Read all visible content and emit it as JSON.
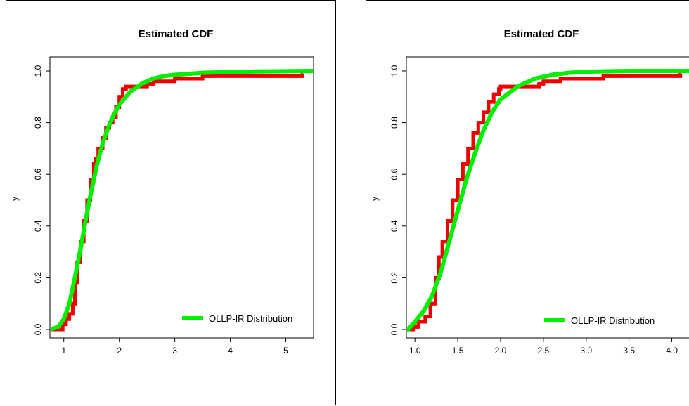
{
  "chart_data": [
    {
      "type": "line",
      "title": "Estimated CDF",
      "xlabel": "",
      "ylabel": "y",
      "xlim": [
        0.75,
        5.5
      ],
      "ylim": [
        0.0,
        1.0
      ],
      "x_ticks": [
        1,
        2,
        3,
        4,
        5
      ],
      "x_tick_labels": [
        "1",
        "2",
        "3",
        "4",
        "5"
      ],
      "y_ticks": [
        0.0,
        0.2,
        0.4,
        0.6,
        0.8,
        1.0
      ],
      "y_tick_labels": [
        "0.0",
        "0.2",
        "0.4",
        "0.6",
        "0.8",
        "1.0"
      ],
      "grid": false,
      "legend_position": "bottom-right",
      "legend": [
        "OLLP-IR Distribution"
      ],
      "colors": {
        "empirical": "#ee0000",
        "fitted": "#00ee00"
      },
      "series": [
        {
          "kind": "step",
          "x": [
            0.75,
            0.98,
            1.04,
            1.1,
            1.16,
            1.2,
            1.24,
            1.3,
            1.36,
            1.42,
            1.48,
            1.54,
            1.58,
            1.62,
            1.7,
            1.76,
            1.82,
            1.88,
            1.94,
            2.0,
            2.06,
            2.12,
            2.5,
            2.62,
            3.0,
            3.5,
            4.0,
            5.3
          ],
          "y": [
            0.0,
            0.02,
            0.04,
            0.06,
            0.1,
            0.18,
            0.26,
            0.34,
            0.42,
            0.5,
            0.58,
            0.64,
            0.66,
            0.7,
            0.74,
            0.78,
            0.8,
            0.82,
            0.86,
            0.9,
            0.93,
            0.94,
            0.95,
            0.96,
            0.97,
            0.98,
            0.98,
            0.99
          ]
        },
        {
          "name": "OLLP-IR Distribution",
          "kind": "curve",
          "x": [
            0.75,
            0.9,
            1.0,
            1.1,
            1.2,
            1.3,
            1.4,
            1.5,
            1.6,
            1.7,
            1.8,
            1.9,
            2.0,
            2.2,
            2.4,
            2.6,
            2.8,
            3.0,
            3.5,
            4.0,
            4.5,
            5.0,
            5.5
          ],
          "y": [
            0.0,
            0.01,
            0.04,
            0.1,
            0.2,
            0.31,
            0.43,
            0.54,
            0.64,
            0.72,
            0.78,
            0.83,
            0.87,
            0.92,
            0.95,
            0.97,
            0.98,
            0.985,
            0.993,
            0.996,
            0.998,
            0.999,
            1.0
          ]
        }
      ]
    },
    {
      "type": "line",
      "title": "Estimated CDF",
      "xlabel": "",
      "ylabel": "y",
      "xlim": [
        0.9,
        4.25
      ],
      "ylim": [
        0.0,
        1.0
      ],
      "x_ticks": [
        1.0,
        1.5,
        2.0,
        2.5,
        3.0,
        3.5,
        4.0
      ],
      "x_tick_labels": [
        "1.0",
        "1.5",
        "2.0",
        "2.5",
        "3.0",
        "3.5",
        "4.0"
      ],
      "y_ticks": [
        0.0,
        0.2,
        0.4,
        0.6,
        0.8,
        1.0
      ],
      "y_tick_labels": [
        "0.0",
        "0.2",
        "0.4",
        "0.6",
        "0.8",
        "1.0"
      ],
      "grid": false,
      "legend_position": "bottom-right",
      "legend": [
        "OLLP-IR Distribution"
      ],
      "colors": {
        "empirical": "#ee0000",
        "fitted": "#00ee00"
      },
      "series": [
        {
          "kind": "step",
          "x": [
            0.9,
            0.98,
            1.04,
            1.12,
            1.18,
            1.24,
            1.28,
            1.32,
            1.38,
            1.44,
            1.5,
            1.56,
            1.62,
            1.68,
            1.74,
            1.8,
            1.86,
            1.92,
            1.98,
            2.0,
            2.45,
            2.5,
            2.7,
            3.2,
            4.1
          ],
          "y": [
            0.0,
            0.01,
            0.03,
            0.05,
            0.1,
            0.2,
            0.28,
            0.34,
            0.42,
            0.5,
            0.58,
            0.64,
            0.7,
            0.76,
            0.8,
            0.84,
            0.88,
            0.91,
            0.93,
            0.94,
            0.95,
            0.96,
            0.97,
            0.98,
            0.99
          ]
        },
        {
          "name": "OLLP-IR Distribution",
          "kind": "curve",
          "x": [
            0.92,
            1.0,
            1.1,
            1.2,
            1.3,
            1.4,
            1.5,
            1.6,
            1.7,
            1.8,
            1.9,
            2.0,
            2.2,
            2.4,
            2.6,
            2.8,
            3.0,
            3.3,
            3.6,
            4.0,
            4.25
          ],
          "y": [
            0.0,
            0.03,
            0.07,
            0.13,
            0.22,
            0.34,
            0.46,
            0.58,
            0.68,
            0.77,
            0.84,
            0.89,
            0.94,
            0.97,
            0.985,
            0.993,
            0.997,
            0.999,
            1.0,
            1.0,
            1.0
          ]
        }
      ]
    }
  ]
}
